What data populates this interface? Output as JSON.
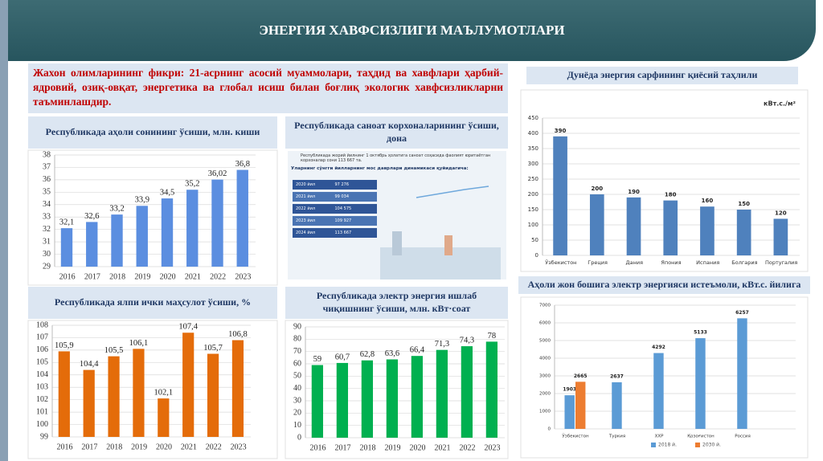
{
  "header": {
    "title": "ЭНЕРГИЯ ХАВФСИЗЛИГИ МАЪЛУМОТЛАРИ"
  },
  "intro": {
    "text": "Жахон олимларининг фикри: 21-асрнинг асосий муаммолари, таҳдид ва хавфлари ҳарбий-ядровий, озиқ-овқат, энергетика ва глобал исиш билан боғлиқ экологик хавфсизликларни таъминлашдир."
  },
  "factories": {
    "title": "Республикада саноат корхоналарининг ўсиши, дона",
    "caption": "Республикада жорий йилнинг 1 октябрь ҳолатига саноат соҳасида фаолият юритаётган корхоналар сони 113 667 та.",
    "subcaption": "Уларнинг сўнгги йилларнинг мос даврлари динамикаси қуйидагича:",
    "rows": [
      [
        "2020 йил",
        "97 276"
      ],
      [
        "2021 йил",
        "99 034"
      ],
      [
        "2022 йил",
        "104 575"
      ],
      [
        "2023 йил",
        "109 927"
      ],
      [
        "2024 йил",
        "113 667"
      ]
    ]
  },
  "chart_data": [
    {
      "type": "bar",
      "title": "Республикада аҳоли сонининг ўсиши, млн. киши",
      "categories": [
        "2016",
        "2017",
        "2018",
        "2019",
        "2020",
        "2021",
        "2022",
        "2023"
      ],
      "values": [
        32.1,
        32.6,
        33.2,
        33.9,
        34.5,
        35.2,
        36.02,
        36.8
      ],
      "value_labels": [
        "32,1",
        "32,6",
        "33,2",
        "33,9",
        "34,5",
        "35,2",
        "36,02",
        "36,8"
      ],
      "color": "#5b8ee0",
      "ylim": [
        29,
        38
      ],
      "yticks": [
        29,
        30,
        31,
        32,
        33,
        34,
        35,
        36,
        37,
        38
      ],
      "grid": true
    },
    {
      "type": "bar",
      "title": "Республикада ялпи ички маҳсулот ўсиши, %",
      "categories": [
        "2016",
        "2017",
        "2018",
        "2019",
        "2020",
        "2021",
        "2022",
        "2023"
      ],
      "values": [
        105.9,
        104.4,
        105.5,
        106.1,
        102.1,
        107.4,
        105.7,
        106.8
      ],
      "value_labels": [
        "105,9",
        "104,4",
        "105,5",
        "106,1",
        "102,1",
        "107,4",
        "105,7",
        "106,8"
      ],
      "color": "#e46c0a",
      "ylim": [
        99,
        108
      ],
      "yticks": [
        99,
        100,
        101,
        102,
        103,
        104,
        105,
        106,
        107,
        108
      ],
      "grid": true
    },
    {
      "type": "bar",
      "title": "Республикада электр энергия ишлаб чиқишнинг ўсиши, млн. кВт·соат",
      "categories": [
        "2016",
        "2017",
        "2018",
        "2019",
        "2020",
        "2021",
        "2022",
        "2023"
      ],
      "values": [
        59,
        60.7,
        62.8,
        63.6,
        66.4,
        71.3,
        74.3,
        78
      ],
      "value_labels": [
        "59",
        "60,7",
        "62,8",
        "63,6",
        "66,4",
        "71,3",
        "74,3",
        "78"
      ],
      "color": "#00b050",
      "ylim": [
        0,
        90
      ],
      "yticks": [
        0,
        10,
        20,
        30,
        40,
        50,
        60,
        70,
        80,
        90
      ],
      "grid": true
    },
    {
      "type": "bar",
      "title": "Дунёда энергия сарфининг қиёсий таҳлили",
      "y_label": "кВт.с./м²",
      "categories": [
        "Ўзбекистон",
        "Греция",
        "Дания",
        "Япония",
        "Испания",
        "Болгария",
        "Португалия"
      ],
      "values": [
        390,
        200,
        190,
        180,
        160,
        150,
        120
      ],
      "color": "#4f81bd",
      "ylim": [
        0,
        450
      ],
      "yticks": [
        0,
        50,
        100,
        150,
        200,
        250,
        300,
        350,
        400,
        450
      ],
      "grid": true
    },
    {
      "type": "bar",
      "title": "Аҳоли жон бошига электр энергияси истеъмоли, кВт.с. йилига",
      "categories": [
        "Ўзбекистон",
        "Туркия",
        "ХХР",
        "Қозоғистон",
        "Россия"
      ],
      "series": [
        {
          "name": "2018 й.",
          "color": "#5b9bd5",
          "values": [
            1903,
            2637,
            4292,
            5133,
            6257
          ]
        },
        {
          "name": "2030 й.",
          "color": "#ed7d31",
          "values": [
            2665,
            null,
            null,
            null,
            null
          ]
        }
      ],
      "ylim": [
        0,
        7000
      ],
      "yticks": [
        0,
        1000,
        2000,
        3000,
        4000,
        5000,
        6000,
        7000
      ],
      "grid": true,
      "legend": "bottom"
    }
  ]
}
